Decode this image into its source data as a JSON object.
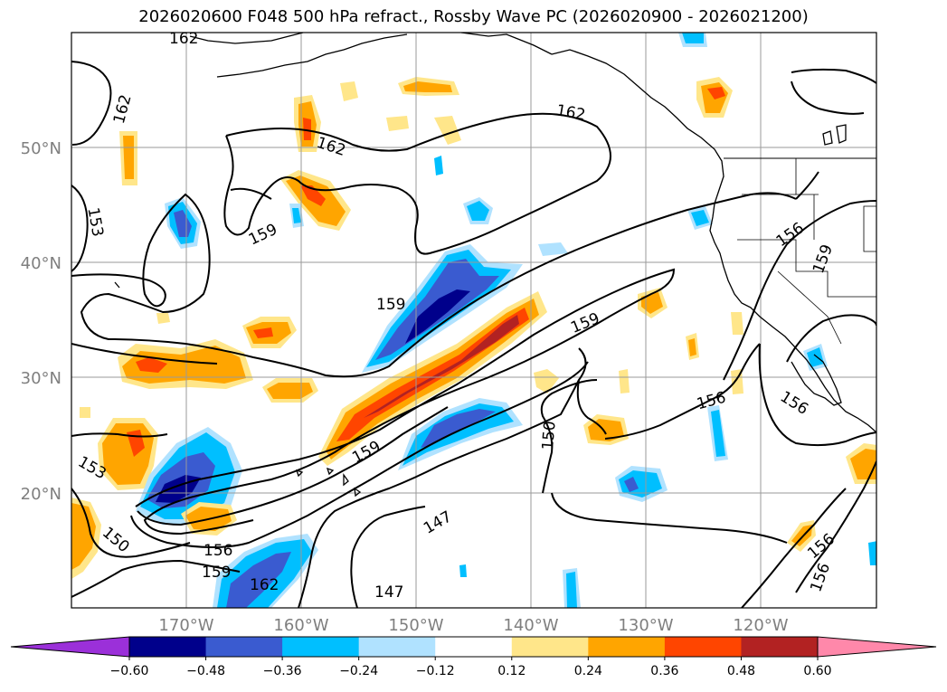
{
  "title": "2026020600 F048 500 hPa refract., Rossby Wave PC (2026020900 - 2026021200)",
  "map": {
    "projection": "PlateCarree",
    "lon_range": [
      -180,
      -110
    ],
    "lat_range": [
      10,
      60
    ],
    "lat_ticks": [
      {
        "value": 50,
        "label": "50°N"
      },
      {
        "value": 40,
        "label": "40°N"
      },
      {
        "value": 30,
        "label": "30°N"
      },
      {
        "value": 20,
        "label": "20°N"
      }
    ],
    "lon_ticks": [
      {
        "value": -170,
        "label": "170°W"
      },
      {
        "value": -160,
        "label": "160°W"
      },
      {
        "value": -150,
        "label": "150°W"
      },
      {
        "value": -140,
        "label": "140°W"
      },
      {
        "value": -130,
        "label": "130°W"
      },
      {
        "value": -120,
        "label": "120°W"
      }
    ],
    "gridlines": true,
    "coastlines": true,
    "contour_labels": [
      "162",
      "162",
      "162",
      "162",
      "159",
      "159",
      "159",
      "159",
      "153",
      "153",
      "150",
      "150",
      "156",
      "159",
      "162",
      "147",
      "147",
      "156",
      "156",
      "156",
      "159",
      "156"
    ]
  },
  "colorbar": {
    "orientation": "horizontal",
    "extend": "both",
    "bounds": [
      -0.6,
      -0.48,
      -0.36,
      -0.24,
      -0.12,
      0.12,
      0.24,
      0.36,
      0.48,
      0.6
    ],
    "labels": [
      "−0.60",
      "−0.48",
      "−0.36",
      "−0.24",
      "−0.12",
      "0.12",
      "0.24",
      "0.36",
      "0.48",
      "0.60"
    ],
    "colors": [
      "#9b30d9",
      "#00008b",
      "#3a5bd0",
      "#00bfff",
      "#b0e2ff",
      "#ffffff",
      "#ffe68a",
      "#ffa500",
      "#ff4500",
      "#b22222",
      "#ff88aa"
    ]
  }
}
